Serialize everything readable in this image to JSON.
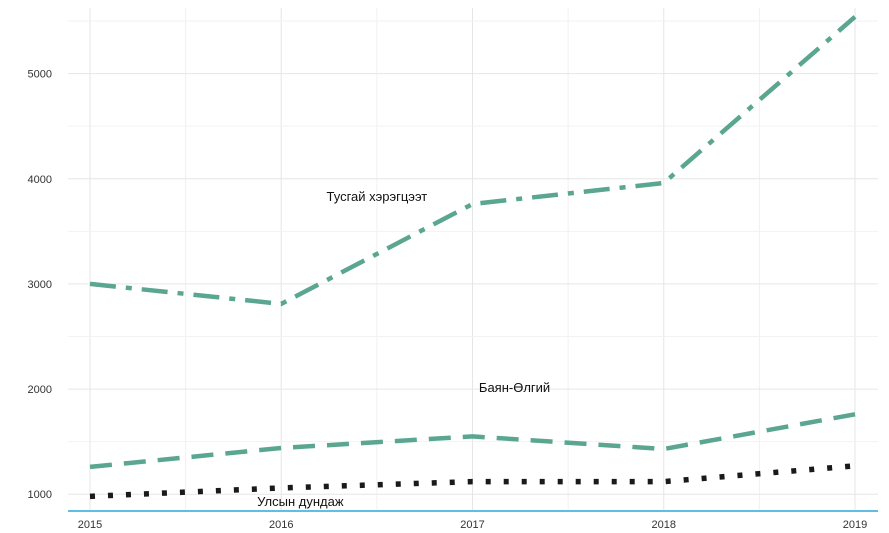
{
  "chart_data": {
    "type": "line",
    "x": [
      2015,
      2016,
      2017,
      2018,
      2019
    ],
    "xlim": [
      2015,
      2019
    ],
    "ylim": [
      850,
      5700
    ],
    "yticks": [
      1000,
      2000,
      3000,
      4000,
      5000
    ],
    "grid": true,
    "legend": "none",
    "series": [
      {
        "name": "Тусгай хэрэгцээт",
        "values": [
          3000,
          2810,
          3760,
          3960,
          5540
        ],
        "color": "#5aa690",
        "line_style": "dash-dot",
        "label_anchor": {
          "x": 2016.5,
          "y": 3790
        }
      },
      {
        "name": "Баян-Өлгий",
        "values": [
          1260,
          1440,
          1550,
          1430,
          1760
        ],
        "color": "#5aa690",
        "line_style": "dashed",
        "label_anchor": {
          "x": 2017.22,
          "y": 1970
        }
      },
      {
        "name": "Улсын дундаж",
        "values": [
          980,
          1060,
          1120,
          1120,
          1270
        ],
        "color": "#1a1a1a",
        "line_style": "dotted",
        "label_anchor": {
          "x": 2016.1,
          "y": 890
        }
      }
    ]
  }
}
